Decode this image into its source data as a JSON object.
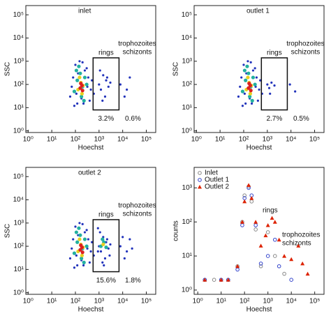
{
  "chart_data": [
    {
      "type": "density",
      "title": "inlet",
      "x_label": "Hoechst",
      "y_label": "SSC",
      "log_x": true,
      "log_y": true,
      "xlim": [
        0.8,
        250000
      ],
      "ylim": [
        0.85,
        250000
      ],
      "xticks": [
        {
          "value": 1,
          "label": "10⁰"
        },
        {
          "value": 10,
          "label": "10¹"
        },
        {
          "value": 100,
          "label": "10²"
        },
        {
          "value": 1000,
          "label": "10³"
        },
        {
          "value": 10000,
          "label": "10⁴"
        },
        {
          "value": 100000,
          "label": "10⁵"
        }
      ],
      "yticks": [
        {
          "value": 1,
          "label": "10⁰"
        },
        {
          "value": 10,
          "label": "10¹"
        },
        {
          "value": 100,
          "label": "10²"
        },
        {
          "value": 1000,
          "label": "10³"
        },
        {
          "value": 10000,
          "label": "10⁴"
        },
        {
          "value": 100000,
          "label": "10⁵"
        }
      ],
      "gate": {
        "x": [
          560,
          7000
        ],
        "y": [
          8,
          1400
        ]
      },
      "gate_label": "rings",
      "gate_pct": "3.2%",
      "right_label": [
        "trophozoites",
        "schizonts"
      ],
      "right_pct": "0.6%",
      "clusters": [
        {
          "color": "#2233bb",
          "x": [
            60,
            80,
            100,
            120,
            150,
            200,
            250,
            320,
            400,
            500,
            70,
            90,
            110,
            180,
            300,
            450,
            130,
            220,
            350,
            600,
            1000,
            1200,
            1500,
            2000,
            2500,
            1800,
            1100,
            3000,
            1400,
            2200,
            8000,
            15000,
            20000,
            12000
          ],
          "y": [
            30,
            200,
            700,
            15,
            1000,
            900,
            400,
            80,
            20,
            150,
            80,
            12,
            40,
            25,
            500,
            60,
            300,
            15,
            200,
            40,
            100,
            60,
            250,
            150,
            80,
            30,
            400,
            120,
            20,
            200,
            100,
            60,
            200,
            30
          ]
        },
        {
          "color": "#22b0a0",
          "x": [
            90,
            120,
            160,
            200,
            250,
            110,
            180,
            300,
            140,
            230
          ],
          "y": [
            50,
            150,
            300,
            80,
            200,
            400,
            30,
            100,
            600,
            20
          ]
        },
        {
          "color": "#e8d020",
          "x": [
            130,
            170,
            210,
            150,
            190
          ],
          "y": [
            60,
            120,
            90,
            200,
            40
          ]
        },
        {
          "color": "#dd2020",
          "x": [
            160,
            190,
            170,
            200
          ],
          "y": [
            70,
            90,
            110,
            55
          ]
        }
      ]
    },
    {
      "type": "density",
      "title": "outlet 1",
      "x_label": "Hoechst",
      "y_label": "SSC",
      "log_x": true,
      "log_y": true,
      "xlim": [
        0.8,
        250000
      ],
      "ylim": [
        0.85,
        250000
      ],
      "xticks": [
        {
          "value": 1,
          "label": "10⁰"
        },
        {
          "value": 10,
          "label": "10¹"
        },
        {
          "value": 100,
          "label": "10²"
        },
        {
          "value": 1000,
          "label": "10³"
        },
        {
          "value": 10000,
          "label": "10⁴"
        },
        {
          "value": 100000,
          "label": "10⁵"
        }
      ],
      "yticks": [
        {
          "value": 1,
          "label": "10⁰"
        },
        {
          "value": 10,
          "label": "10¹"
        },
        {
          "value": 100,
          "label": "10²"
        },
        {
          "value": 1000,
          "label": "10³"
        },
        {
          "value": 10000,
          "label": "10⁴"
        },
        {
          "value": 100000,
          "label": "10⁵"
        }
      ],
      "gate": {
        "x": [
          560,
          7000
        ],
        "y": [
          8,
          1400
        ]
      },
      "gate_label": "rings",
      "gate_pct": "2.7%",
      "right_label": [
        "trophozoites",
        "schizonts"
      ],
      "right_pct": "0.5%",
      "clusters": [
        {
          "color": "#2233bb",
          "x": [
            60,
            80,
            100,
            120,
            150,
            200,
            250,
            320,
            400,
            500,
            70,
            90,
            110,
            180,
            300,
            450,
            130,
            220,
            350,
            600,
            1000,
            1200,
            1500,
            2000,
            1300,
            9000,
            15000
          ],
          "y": [
            30,
            200,
            700,
            15,
            1000,
            900,
            400,
            80,
            20,
            150,
            80,
            12,
            40,
            25,
            500,
            60,
            300,
            15,
            200,
            40,
            100,
            70,
            120,
            90,
            40,
            100,
            50
          ]
        },
        {
          "color": "#22b0a0",
          "x": [
            90,
            120,
            160,
            200,
            250,
            110,
            180,
            300,
            140,
            230
          ],
          "y": [
            50,
            150,
            300,
            80,
            200,
            400,
            30,
            100,
            600,
            20
          ]
        },
        {
          "color": "#e8d020",
          "x": [
            130,
            170,
            210,
            150,
            190
          ],
          "y": [
            60,
            120,
            90,
            200,
            40
          ]
        },
        {
          "color": "#dd2020",
          "x": [
            160,
            190,
            170,
            200
          ],
          "y": [
            70,
            90,
            110,
            55
          ]
        }
      ]
    },
    {
      "type": "density",
      "title": "outlet 2",
      "x_label": "Hoechst",
      "y_label": "SSC",
      "log_x": true,
      "log_y": true,
      "xlim": [
        0.8,
        250000
      ],
      "ylim": [
        0.85,
        250000
      ],
      "xticks": [
        {
          "value": 1,
          "label": "10⁰"
        },
        {
          "value": 10,
          "label": "10¹"
        },
        {
          "value": 100,
          "label": "10²"
        },
        {
          "value": 1000,
          "label": "10³"
        },
        {
          "value": 10000,
          "label": "10⁴"
        },
        {
          "value": 100000,
          "label": "10⁵"
        }
      ],
      "yticks": [
        {
          "value": 1,
          "label": "10⁰"
        },
        {
          "value": 10,
          "label": "10¹"
        },
        {
          "value": 100,
          "label": "10²"
        },
        {
          "value": 1000,
          "label": "10³"
        },
        {
          "value": 10000,
          "label": "10⁴"
        },
        {
          "value": 100000,
          "label": "10⁵"
        }
      ],
      "gate": {
        "x": [
          560,
          7000
        ],
        "y": [
          8,
          1400
        ]
      },
      "gate_label": "rings",
      "gate_pct": "15.6%",
      "right_label": [
        "trophozoites",
        "schizonts"
      ],
      "right_pct": "1.8%",
      "clusters": [
        {
          "color": "#2233bb",
          "x": [
            60,
            80,
            100,
            120,
            150,
            200,
            250,
            320,
            400,
            500,
            70,
            90,
            110,
            180,
            300,
            450,
            130,
            220,
            350,
            600,
            900,
            1000,
            1200,
            1500,
            2000,
            2500,
            1800,
            1100,
            3000,
            1400,
            2200,
            900,
            2800,
            1600,
            8000,
            15000,
            20000,
            12000,
            25000,
            10000
          ],
          "y": [
            30,
            200,
            700,
            15,
            1000,
            900,
            400,
            80,
            20,
            150,
            80,
            12,
            40,
            25,
            500,
            60,
            300,
            15,
            200,
            40,
            60,
            100,
            60,
            250,
            150,
            80,
            30,
            400,
            120,
            20,
            200,
            600,
            40,
            15,
            100,
            60,
            200,
            30,
            80,
            250
          ]
        },
        {
          "color": "#22b0a0",
          "x": [
            90,
            120,
            160,
            200,
            250,
            110,
            180,
            300,
            140,
            230,
            1200,
            1600,
            2000,
            1400
          ],
          "y": [
            50,
            150,
            300,
            80,
            200,
            400,
            30,
            100,
            600,
            20,
            100,
            150,
            90,
            200
          ]
        },
        {
          "color": "#e8d020",
          "x": [
            130,
            170,
            210,
            150,
            190,
            1500
          ],
          "y": [
            60,
            120,
            90,
            200,
            40,
            120
          ]
        },
        {
          "color": "#dd2020",
          "x": [
            160,
            190,
            170,
            200
          ],
          "y": [
            70,
            90,
            110,
            55
          ]
        }
      ]
    },
    {
      "type": "scatter",
      "x_label": "Hoechst",
      "y_label": "counts",
      "log_x": true,
      "log_y": true,
      "xlim": [
        0.7,
        250000
      ],
      "ylim": [
        0.75,
        4000
      ],
      "xticks": [
        {
          "value": 1,
          "label": "10⁰"
        },
        {
          "value": 10,
          "label": "10¹"
        },
        {
          "value": 100,
          "label": "10²"
        },
        {
          "value": 1000,
          "label": "10³"
        },
        {
          "value": 10000,
          "label": "10⁴"
        },
        {
          "value": 100000,
          "label": "10⁵"
        }
      ],
      "yticks": [
        {
          "value": 1,
          "label": "10⁰"
        },
        {
          "value": 10,
          "label": "10¹"
        },
        {
          "value": 100,
          "label": "10²"
        },
        {
          "value": 1000,
          "label": "10³"
        }
      ],
      "annotations": [
        "rings",
        "trophozoites",
        "schizonts"
      ],
      "series": [
        {
          "name": "Inlet",
          "color": "#888888",
          "marker": "circle",
          "x": [
            2,
            5,
            10,
            20,
            50,
            80,
            100,
            150,
            200,
            300,
            500,
            1000,
            2000,
            5000
          ],
          "values": [
            2,
            2,
            2,
            2,
            5,
            100,
            600,
            1100,
            400,
            60,
            5,
            50,
            10,
            3
          ]
        },
        {
          "name": "Outlet 1",
          "color": "#3344cc",
          "marker": "circle",
          "x": [
            2,
            10,
            20,
            50,
            80,
            100,
            150,
            200,
            300,
            500,
            1000,
            2000,
            3000,
            10000
          ],
          "values": [
            2,
            2,
            2,
            4,
            80,
            500,
            1000,
            600,
            80,
            6,
            10,
            30,
            5,
            2
          ]
        },
        {
          "name": "Outlet 2",
          "color": "#dd2200",
          "marker": "triangle",
          "x": [
            2,
            10,
            20,
            50,
            80,
            100,
            150,
            200,
            300,
            500,
            800,
            1000,
            1500,
            2000,
            3000,
            5000,
            10000,
            20000,
            30000,
            50000
          ],
          "values": [
            2,
            2,
            2,
            5,
            100,
            400,
            1200,
            500,
            100,
            20,
            40,
            80,
            130,
            100,
            30,
            10,
            8,
            20,
            6,
            3
          ]
        }
      ]
    }
  ]
}
